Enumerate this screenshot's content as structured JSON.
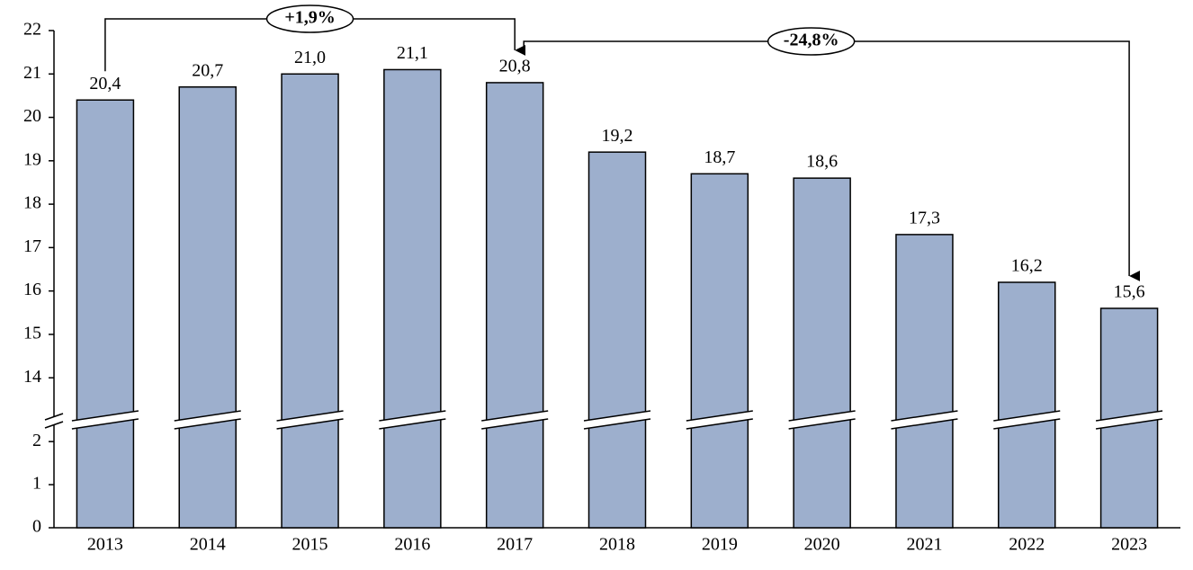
{
  "chart_data": {
    "type": "bar",
    "categories": [
      "2013",
      "2014",
      "2015",
      "2016",
      "2017",
      "2018",
      "2019",
      "2020",
      "2021",
      "2022",
      "2023"
    ],
    "values": [
      20.4,
      20.7,
      21.0,
      21.1,
      20.8,
      19.2,
      18.7,
      18.6,
      17.3,
      16.2,
      15.6
    ],
    "value_labels": [
      "20,4",
      "20,7",
      "21,0",
      "21,1",
      "20,8",
      "19,2",
      "18,7",
      "18,6",
      "17,3",
      "16,2",
      "15,6"
    ],
    "color": "#9dafcd",
    "ylim": [
      0,
      22
    ],
    "axis_break": [
      2.4,
      13.3
    ],
    "yticks": [
      0,
      1,
      2,
      14,
      15,
      16,
      17,
      18,
      19,
      20,
      21,
      22
    ],
    "annotations": [
      {
        "text": "+1,9%",
        "from": "2013",
        "to": "2017"
      },
      {
        "text": "-24,8%",
        "from": "2017",
        "to": "2023"
      }
    ]
  }
}
